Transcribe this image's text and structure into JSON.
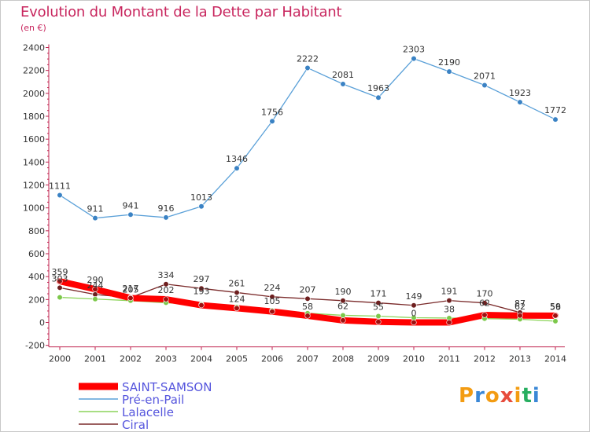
{
  "header": {
    "title": "Evolution du Montant de la Dette par Habitant",
    "subtitle": "(en €)"
  },
  "logo": {
    "text": "Proxiti",
    "colors": [
      "#f39c12",
      "#3a87d6",
      "#f39c12",
      "#e74c3c",
      "#f39c12",
      "#27ae60",
      "#3a87d6"
    ]
  },
  "chart_data": {
    "type": "line",
    "title": "Evolution du Montant de la Dette par Habitant",
    "subtitle": "(en €)",
    "x": [
      "2000",
      "2001",
      "2002",
      "2003",
      "2004",
      "2005",
      "2006",
      "2007",
      "2008",
      "2009",
      "2010",
      "2011",
      "2012",
      "2013",
      "2014"
    ],
    "yticks": [
      "-200",
      "0",
      "200",
      "400",
      "600",
      "800",
      "1000",
      "1200",
      "1400",
      "1600",
      "1800",
      "2000",
      "2200",
      "2400"
    ],
    "ylim": [
      -200,
      2400
    ],
    "grid": false,
    "legend_position": "bottom-left",
    "series": [
      {
        "name": "Pré-en-Pail",
        "color": "#5aa0d8",
        "marker": "#3a82c4",
        "width": 1.3,
        "values": [
          1111,
          911,
          941,
          916,
          1013,
          1346,
          1756,
          2222,
          2081,
          1963,
          2303,
          2190,
          2071,
          1923,
          1772
        ],
        "labels": [
          "1111",
          "911",
          "941",
          "916",
          "1013",
          "1346",
          "1756",
          "2222",
          "2081",
          "1963",
          "2303",
          "2190",
          "2071",
          "1923",
          "1772"
        ]
      },
      {
        "name": "Ciral",
        "color": "#7a2a2a",
        "marker": "#6e1f1f",
        "width": 1.3,
        "values": [
          303,
          244,
          217,
          334,
          297,
          261,
          224,
          207,
          190,
          171,
          149,
          191,
          170,
          87,
          56
        ],
        "labels": [
          "",
          "",
          "217",
          "334",
          "297",
          "261",
          "224",
          "207",
          "190",
          "171",
          "149",
          "191",
          "170",
          "87",
          "56"
        ]
      },
      {
        "name": "Lalacelle",
        "color": "#8cd45a",
        "marker": "#7cc84a",
        "width": 1.3,
        "values": [
          219,
          204,
          190,
          172,
          157,
          133,
          104,
          80,
          62,
          55,
          41,
          38,
          33,
          28,
          11
        ],
        "labels": [
          "",
          "",
          "",
          "",
          "",
          "",
          "",
          "",
          "",
          "",
          "",
          "",
          "",
          "",
          ""
        ]
      },
      {
        "name": "SAINT-SAMSON",
        "color": "#ff0000",
        "marker": "#a01010",
        "width": 8,
        "values": [
          359,
          290,
          213,
          202,
          150,
          124,
          95,
          58,
          18,
          5,
          0,
          0,
          65,
          60,
          59
        ],
        "labels": [
          "359",
          "290",
          "",
          "",
          "",
          "",
          "",
          "",
          "",
          "",
          "0",
          "",
          "",
          "",
          ""
        ]
      }
    ],
    "extra_labels": [
      {
        "x": "2000",
        "y": 303,
        "text": "303"
      },
      {
        "x": "2001",
        "y": 244,
        "text": "244"
      },
      {
        "x": "2002",
        "y": 205,
        "text": "205"
      },
      {
        "x": "2003",
        "y": 202,
        "text": "202"
      },
      {
        "x": "2004",
        "y": 193,
        "text": "193"
      },
      {
        "x": "2005",
        "y": 124,
        "text": "124"
      },
      {
        "x": "2006",
        "y": 105,
        "text": "105"
      },
      {
        "x": "2007",
        "y": 58,
        "text": "58"
      },
      {
        "x": "2008",
        "y": 62,
        "text": "62"
      },
      {
        "x": "2009",
        "y": 55,
        "text": "55"
      },
      {
        "x": "2011",
        "y": 33,
        "text": "38"
      },
      {
        "x": "2012",
        "y": 90,
        "text": "62"
      },
      {
        "x": "2013",
        "y": 60,
        "text": "62"
      },
      {
        "x": "2014",
        "y": 60,
        "text": "59"
      }
    ]
  }
}
